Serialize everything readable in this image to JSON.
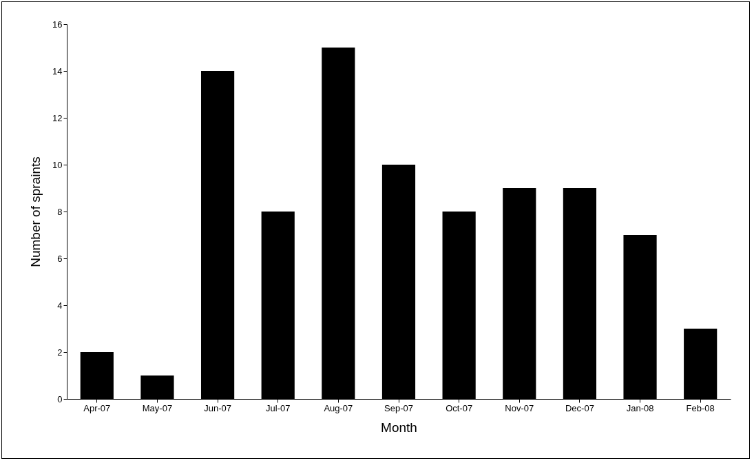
{
  "chart_data": {
    "type": "bar",
    "xlabel": "Month",
    "ylabel": "Number of spraints",
    "categories": [
      "Apr-07",
      "May-07",
      "Jun-07",
      "Jul-07",
      "Aug-07",
      "Sep-07",
      "Oct-07",
      "Nov-07",
      "Dec-07",
      "Jan-08",
      "Feb-08"
    ],
    "values": [
      2,
      1,
      14,
      8,
      15,
      10,
      8,
      9,
      9,
      7,
      3
    ],
    "color": "#000000",
    "ylim": [
      0,
      16
    ],
    "yticks": [
      0,
      2,
      4,
      6,
      8,
      10,
      12,
      14,
      16
    ],
    "grid": false
  }
}
